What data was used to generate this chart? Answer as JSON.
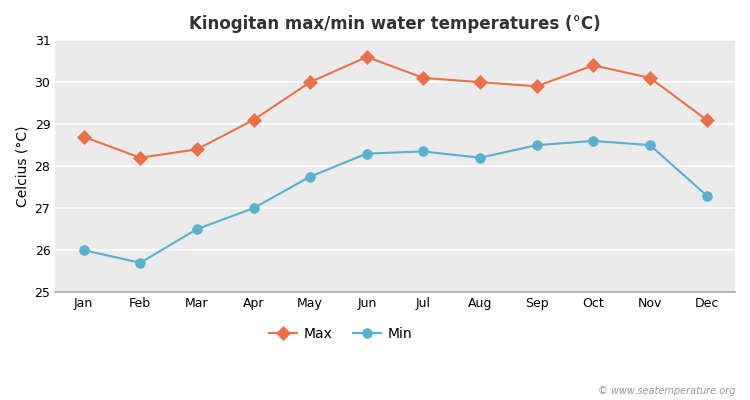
{
  "months": [
    "Jan",
    "Feb",
    "Mar",
    "Apr",
    "May",
    "Jun",
    "Jul",
    "Aug",
    "Sep",
    "Oct",
    "Nov",
    "Dec"
  ],
  "max_temps": [
    28.7,
    28.2,
    28.4,
    29.1,
    30.0,
    30.6,
    30.1,
    30.0,
    29.9,
    30.4,
    30.1,
    29.1
  ],
  "min_temps": [
    26.0,
    25.7,
    26.5,
    27.0,
    27.75,
    28.3,
    28.35,
    28.2,
    28.5,
    28.6,
    28.5,
    27.3
  ],
  "max_color": "#e8714a",
  "min_color": "#5ab0d0",
  "title": "Kinogitan max/min water temperatures (°C)",
  "ylabel": "Celcius (°C)",
  "ylim": [
    25,
    31
  ],
  "yticks": [
    25,
    26,
    27,
    28,
    29,
    30,
    31
  ],
  "fig_bg_color": "#ffffff",
  "plot_bg_color": "#ebebeb",
  "grid_color": "#ffffff",
  "watermark": "© www.seatemperature.org",
  "legend_max": "Max",
  "legend_min": "Min",
  "title_fontsize": 12,
  "label_fontsize": 10,
  "tick_fontsize": 9,
  "watermark_fontsize": 7,
  "marker_size_max": 7,
  "marker_size_min": 7
}
